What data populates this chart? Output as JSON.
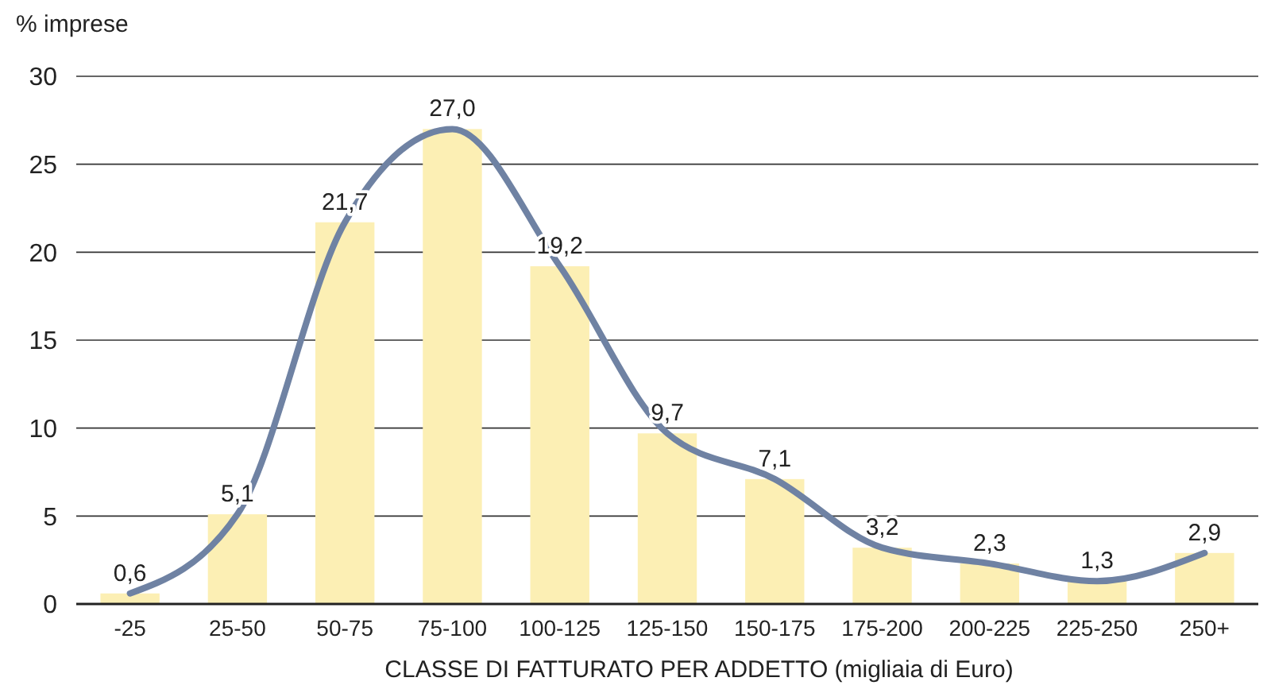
{
  "chart_data": {
    "type": "bar",
    "ylabel": "% imprese",
    "xlabel": "CLASSE DI FATTURATO PER ADDETTO (migliaia di Euro)",
    "categories": [
      "-25",
      "25-50",
      "50-75",
      "75-100",
      "100-125",
      "125-150",
      "150-175",
      "175-200",
      "200-225",
      "225-250",
      "250+"
    ],
    "series": [
      {
        "color": "#fcefb4",
        "values": [
          0.6,
          5.1,
          21.7,
          27.0,
          19.2,
          9.7,
          7.1,
          3.2,
          2.3,
          1.3,
          2.9
        ],
        "value_labels": [
          "0,6",
          "5,1",
          "21,7",
          "27,0",
          "19,2",
          "9,7",
          "7,1",
          "3,2",
          "2,3",
          "1,3",
          "2,9"
        ]
      },
      {
        "type": "line",
        "color": "#6f82a3",
        "values": [
          0.6,
          5.1,
          21.7,
          27.0,
          19.2,
          9.7,
          7.1,
          3.2,
          2.3,
          1.3,
          2.9
        ]
      }
    ],
    "ylim": [
      0,
      30
    ],
    "yticks": [
      0,
      5,
      10,
      15,
      20,
      25,
      30
    ],
    "grid": "y",
    "marker": "none",
    "line_style": "solid"
  }
}
